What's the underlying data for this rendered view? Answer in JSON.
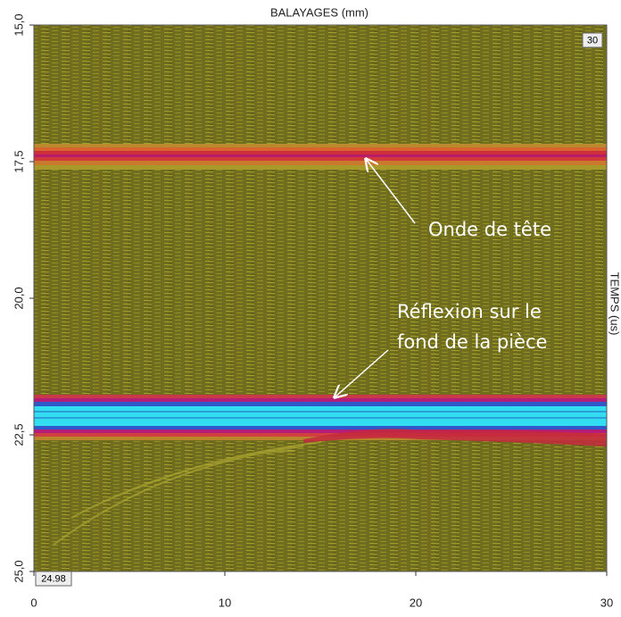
{
  "chart_data": {
    "type": "bscan",
    "title": "BALAYAGES (mm)",
    "y_label": "TEMPS (us)",
    "xlim": [
      0,
      30
    ],
    "xticks": [
      0,
      10,
      20,
      30
    ],
    "ylim": [
      15,
      25
    ],
    "y_direction": "down",
    "yticks": [
      {
        "value": 15,
        "label": "15,0"
      },
      {
        "value": 17.5,
        "label": "17,5"
      },
      {
        "value": 20,
        "label": "20,0"
      },
      {
        "value": 22.5,
        "label": "22,5"
      },
      {
        "value": 25,
        "label": "25,0"
      }
    ],
    "corner_labels": [
      "30",
      "24.98"
    ],
    "annotations": [
      {
        "lines": [
          "Onde de tête"
        ]
      },
      {
        "lines": [
          "Réflexion sur le",
          "fond de la pièce"
        ]
      }
    ]
  }
}
